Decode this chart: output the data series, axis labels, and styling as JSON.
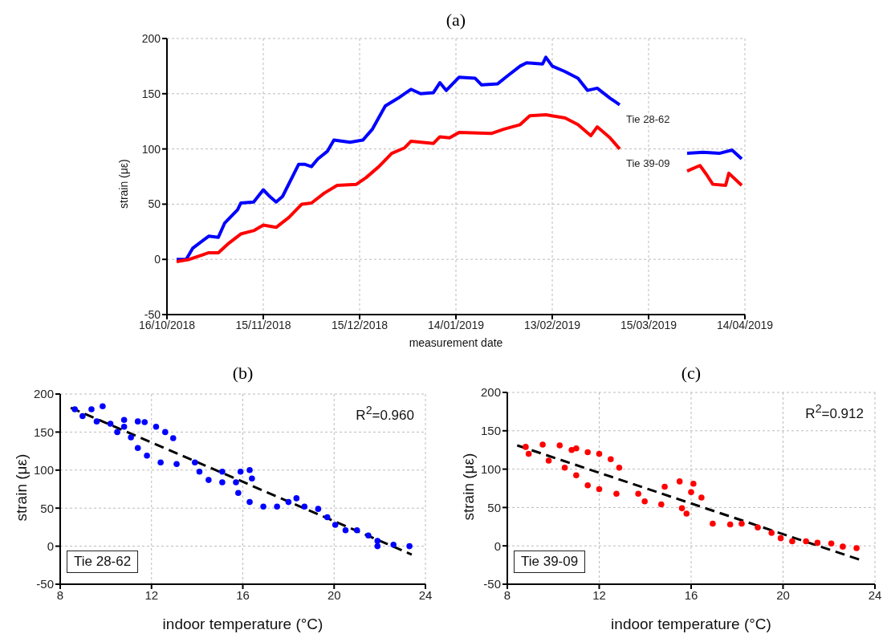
{
  "chart_data": [
    {
      "type": "line",
      "title": "(a)",
      "xlabel": "measurement date",
      "ylabel": "strain (με)",
      "xlim": [
        "2018-10-16",
        "2019-04-14"
      ],
      "xticks": [
        {
          "value": "2018-10-16",
          "label": "16/10/2018"
        },
        {
          "value": "2018-11-15",
          "label": "15/11/2018"
        },
        {
          "value": "2018-12-15",
          "label": "15/12/2018"
        },
        {
          "value": "2019-01-14",
          "label": "14/01/2019"
        },
        {
          "value": "2019-02-13",
          "label": "13/02/2019"
        },
        {
          "value": "2019-03-15",
          "label": "15/03/2019"
        },
        {
          "value": "2019-04-14",
          "label": "14/04/2019"
        }
      ],
      "ylim": [
        -50,
        200
      ],
      "yticks": [
        -50,
        0,
        50,
        100,
        150,
        200
      ],
      "grid": true,
      "series": [
        {
          "name": "Tie 28-62",
          "color": "#0000ff",
          "x": [
            "2018-10-19",
            "2018-10-22",
            "2018-10-24",
            "2018-10-29",
            "2018-11-01",
            "2018-11-03",
            "2018-11-07",
            "2018-11-08",
            "2018-11-12",
            "2018-11-15",
            "2018-11-17",
            "2018-11-19",
            "2018-11-21",
            "2018-11-26",
            "2018-11-28",
            "2018-11-30",
            "2018-12-02",
            "2018-12-05",
            "2018-12-07",
            "2018-12-12",
            "2018-12-16",
            "2018-12-19",
            "2018-12-23",
            "2018-12-27",
            "2018-12-31",
            "2019-01-03",
            "2019-01-07",
            "2019-01-09",
            "2019-01-11",
            "2019-01-15",
            "2019-01-20",
            "2019-01-22",
            "2019-01-27",
            "2019-01-30",
            "2019-02-03",
            "2019-02-05",
            "2019-02-10",
            "2019-02-11",
            "2019-02-13",
            "2019-02-17",
            "2019-02-21",
            "2019-02-24",
            "2019-02-27",
            "2019-03-03",
            "2019-03-06",
            "2019-03-15",
            "2019-03-27",
            "2019-04-01",
            "2019-04-06",
            "2019-04-10",
            "2019-04-13"
          ],
          "values": [
            0,
            0,
            10,
            21,
            20,
            33,
            45,
            51,
            52,
            63,
            57,
            52,
            57,
            86,
            86,
            84,
            91,
            98,
            108,
            106,
            108,
            118,
            139,
            146,
            154,
            150,
            151,
            160,
            153,
            165,
            164,
            158,
            159,
            166,
            175,
            178,
            177,
            183,
            175,
            170,
            164,
            153,
            155,
            146,
            140,
            null,
            96,
            97,
            96,
            99,
            91
          ]
        },
        {
          "name": "Tie 39-09",
          "color": "#ff0000",
          "x": [
            "2018-10-19",
            "2018-10-23",
            "2018-10-29",
            "2018-11-01",
            "2018-11-04",
            "2018-11-08",
            "2018-11-12",
            "2018-11-15",
            "2018-11-19",
            "2018-11-23",
            "2018-11-27",
            "2018-11-30",
            "2018-12-04",
            "2018-12-08",
            "2018-12-14",
            "2018-12-17",
            "2018-12-21",
            "2018-12-25",
            "2018-12-29",
            "2018-12-31",
            "2019-01-07",
            "2019-01-09",
            "2019-01-12",
            "2019-01-15",
            "2019-01-25",
            "2019-01-29",
            "2019-02-03",
            "2019-02-06",
            "2019-02-11",
            "2019-02-17",
            "2019-02-21",
            "2019-02-25",
            "2019-02-27",
            "2019-03-03",
            "2019-03-06",
            "2019-03-15",
            "2019-03-27",
            "2019-03-31",
            "2019-04-02",
            "2019-04-04",
            "2019-04-08",
            "2019-04-09",
            "2019-04-13"
          ],
          "values": [
            -2,
            0,
            6,
            6,
            14,
            23,
            26,
            31,
            29,
            38,
            50,
            51,
            60,
            67,
            68,
            74,
            84,
            96,
            101,
            107,
            105,
            111,
            110,
            115,
            114,
            118,
            122,
            130,
            131,
            128,
            122,
            112,
            120,
            110,
            100,
            null,
            80,
            85,
            77,
            68,
            67,
            78,
            67
          ]
        }
      ]
    },
    {
      "type": "scatter",
      "title": "(b)",
      "xlabel": "indoor temperature (°C)",
      "ylabel": "strain (με)",
      "xlim": [
        8,
        24
      ],
      "xticks": [
        8,
        12,
        16,
        20,
        24
      ],
      "ylim": [
        -50,
        200
      ],
      "yticks": [
        -50,
        0,
        50,
        100,
        150,
        200
      ],
      "grid": true,
      "marker": "circle",
      "annotations": [
        "R$^{2}$=0.960",
        "Tie 28-62"
      ],
      "series": [
        {
          "color": "#0000ff",
          "x": [
            8.64,
            8.98,
            9.37,
            9.6,
            9.86,
            10.2,
            10.5,
            10.8,
            10.8,
            11.1,
            11.4,
            11.4,
            11.7,
            11.8,
            12.2,
            12.4,
            12.6,
            12.95,
            13.1,
            13.9,
            14.1,
            14.5,
            15.1,
            15.1,
            15.7,
            15.8,
            15.9,
            16.3,
            16.3,
            16.4,
            16.9,
            17.5,
            18.0,
            18.35,
            18.7,
            19.3,
            19.7,
            20.05,
            20.5,
            21.0,
            21.5,
            21.9,
            21.9,
            22.6,
            23.3
          ],
          "values": [
            180,
            171,
            180,
            164,
            184,
            161,
            150,
            166,
            157,
            143,
            164,
            129,
            163,
            119,
            157,
            110,
            150,
            142,
            108,
            110,
            98,
            87,
            84,
            98,
            84,
            70,
            98,
            58,
            100,
            89,
            52,
            52,
            58,
            63,
            52,
            49,
            38,
            28,
            21,
            21,
            14,
            7,
            0,
            2,
            0
          ]
        },
        {
          "type": "line",
          "color": "#000000",
          "line_style": "dashed",
          "marker": "none",
          "x": [
            8.46,
            23.4
          ],
          "values": [
            182,
            -11
          ]
        }
      ]
    },
    {
      "type": "scatter",
      "title": "(c)",
      "xlabel": "indoor temperature (°C)",
      "ylabel": "strain (με)",
      "xlim": [
        8,
        24
      ],
      "xticks": [
        8,
        12,
        16,
        20,
        24
      ],
      "ylim": [
        -50,
        200
      ],
      "yticks": [
        -50,
        0,
        50,
        100,
        150,
        200
      ],
      "grid": true,
      "marker": "circle",
      "annotations": [
        "R$^{2}$=0.912",
        "Tie 39-09"
      ],
      "series": [
        {
          "color": "#ff0000",
          "x": [
            8.8,
            8.93,
            9.54,
            9.8,
            10.28,
            10.5,
            10.8,
            11.0,
            11.0,
            11.5,
            11.5,
            12.0,
            12.0,
            12.5,
            12.75,
            12.87,
            13.7,
            13.98,
            14.7,
            14.85,
            15.5,
            15.6,
            15.8,
            16.0,
            16.1,
            16.45,
            16.94,
            17.7,
            18.2,
            18.9,
            19.5,
            19.9,
            20.4,
            21.0,
            21.5,
            22.1,
            22.6,
            23.2
          ],
          "values": [
            129,
            120,
            132,
            111,
            131,
            102,
            125,
            127,
            92,
            122,
            79,
            120,
            74,
            113,
            68,
            102,
            68,
            58,
            54,
            77,
            84,
            49,
            42,
            70,
            81,
            63,
            29,
            28,
            29,
            24,
            17,
            10,
            6,
            6,
            4,
            3,
            -1,
            -3
          ]
        },
        {
          "type": "line",
          "color": "#000000",
          "line_style": "dashed",
          "marker": "none",
          "x": [
            8.43,
            23.33
          ],
          "values": [
            131,
            -18
          ]
        }
      ]
    }
  ]
}
